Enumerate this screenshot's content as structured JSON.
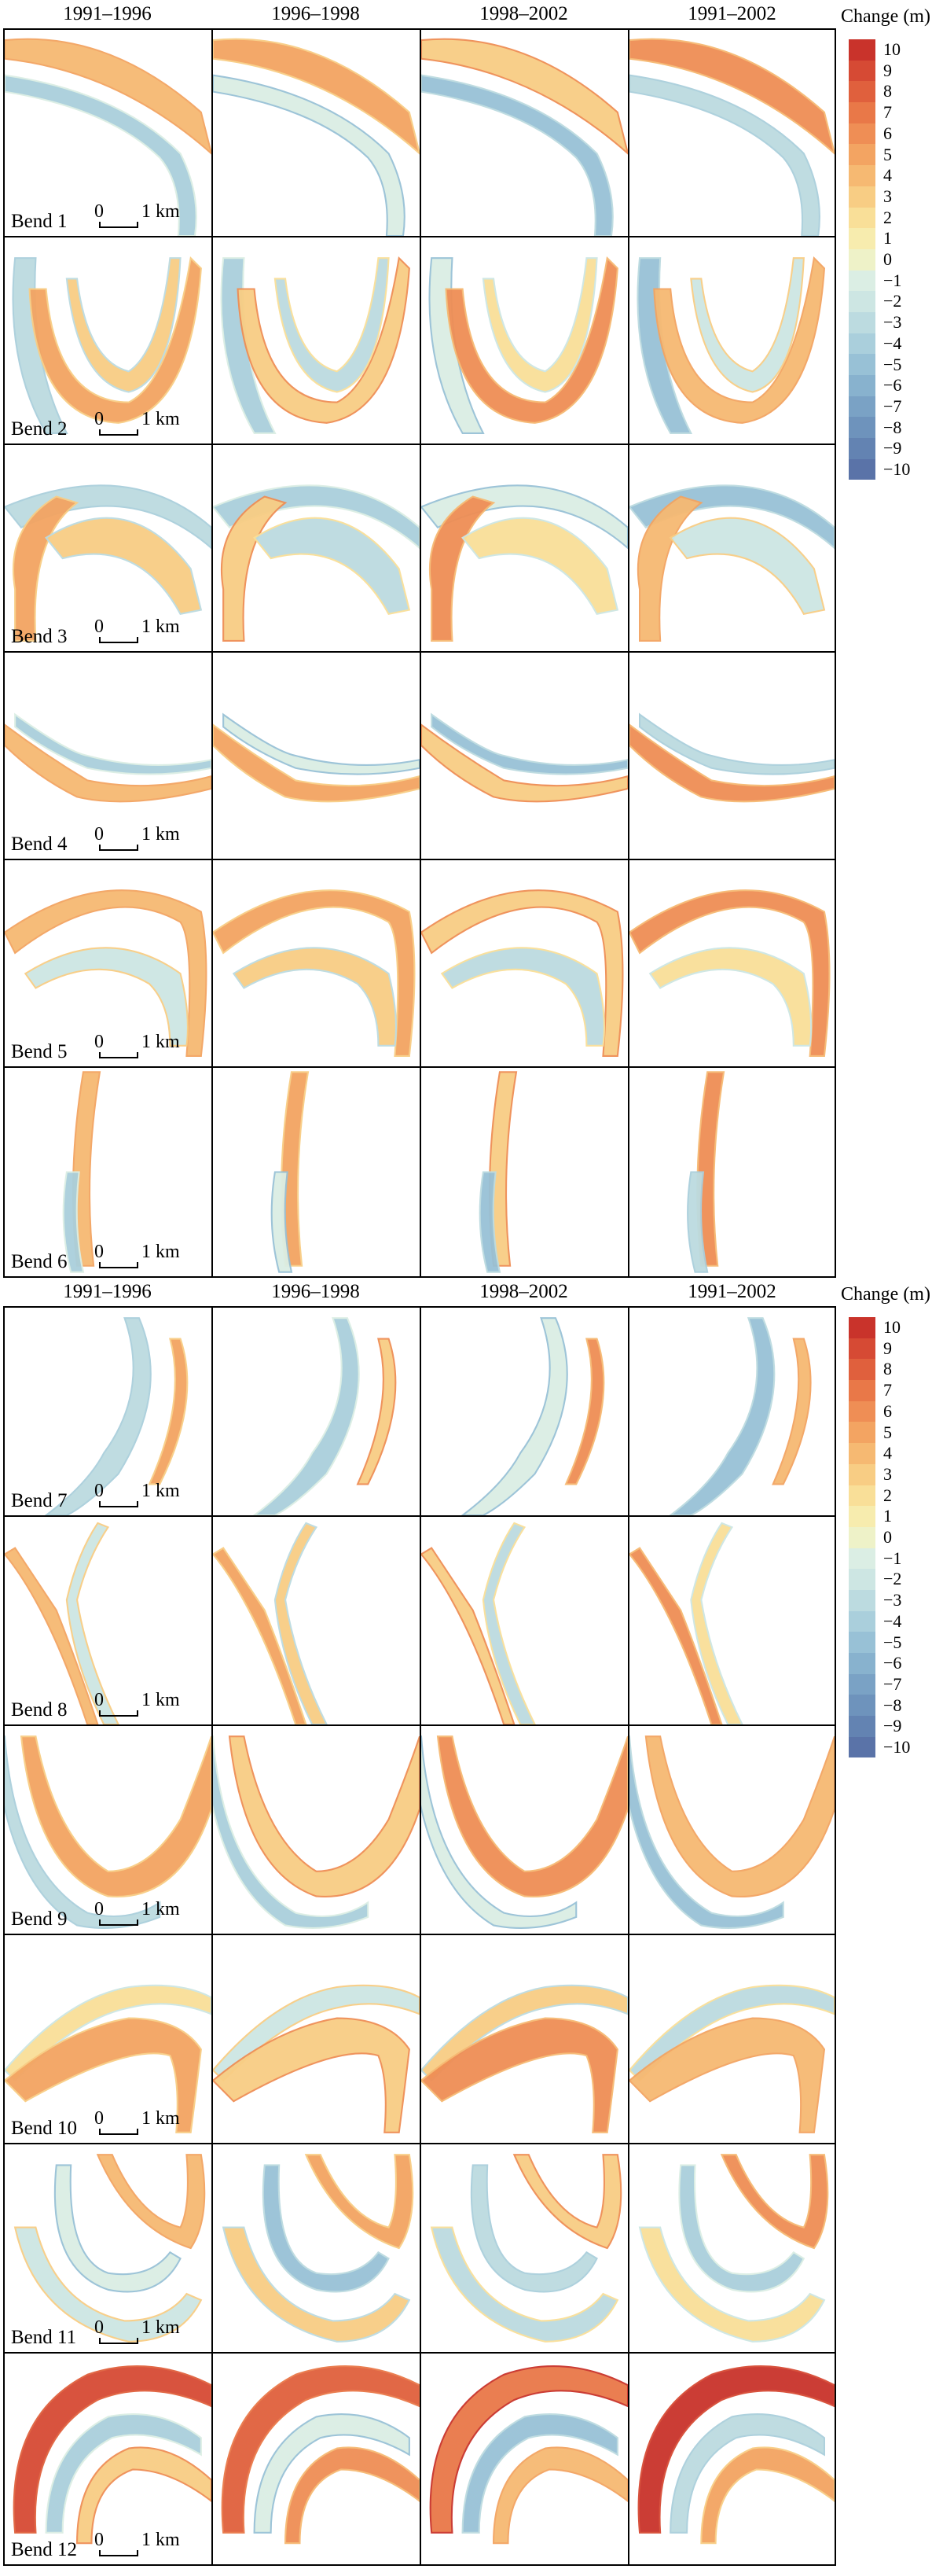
{
  "colors": {
    "10": "#c9332b",
    "9": "#d64a34",
    "8": "#e0603d",
    "7": "#e97848",
    "6": "#ef8e55",
    "5": "#f3a462",
    "4": "#f6b972",
    "3": "#f8cd84",
    "2": "#f9df98",
    "1": "#f7ecae",
    "0": "#eef2c8",
    "-1": "#dbeee4",
    "-2": "#cde6e3",
    "-3": "#bcdbe0",
    "-4": "#aacfdc",
    "-5": "#98c1d6",
    "-6": "#88b2ce",
    "-7": "#7aa2c5",
    "-8": "#6e93bc",
    "-9": "#6383b2",
    "-10": "#5a73a8"
  },
  "periods": [
    "1991–1996",
    "1996–1998",
    "1998–2002",
    "1991–2002"
  ],
  "legend": {
    "title": "Change (m)",
    "ticks": [
      "10",
      "9",
      "8",
      "7",
      "6",
      "5",
      "4",
      "3",
      "2",
      "1",
      "0",
      "−1",
      "−2",
      "−3",
      "−4",
      "−5",
      "−6",
      "−7",
      "−8",
      "−9",
      "−10"
    ]
  },
  "scalebar": {
    "zero": "0",
    "unit": "1 km"
  },
  "bends_a": [
    "Bend 1",
    "Bend 2",
    "Bend 3",
    "Bend 4",
    "Bend 5",
    "Bend 6"
  ],
  "bends_b": [
    "Bend 7",
    "Bend 8",
    "Bend 9",
    "Bend 10",
    "Bend 11",
    "Bend 12"
  ]
}
